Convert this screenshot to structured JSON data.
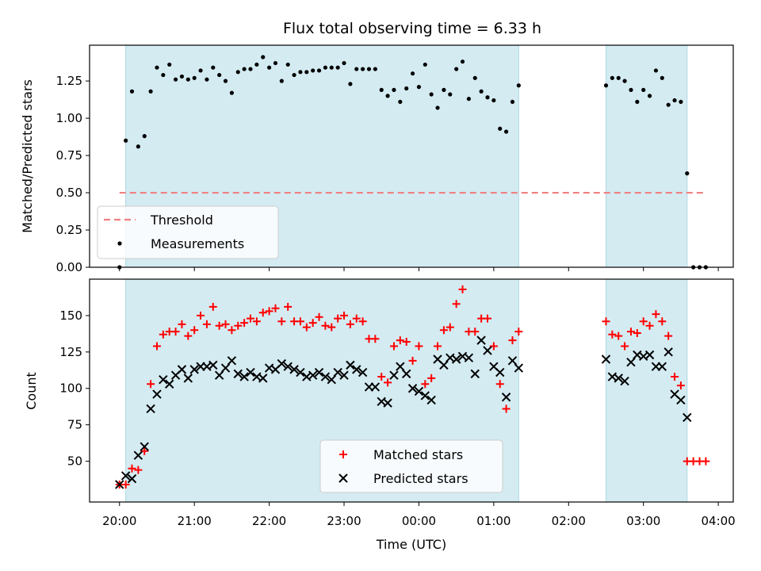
{
  "chart_data": [
    {
      "type": "scatter",
      "title": "Flux total observing time = 6.33 h",
      "xlabel": "",
      "ylabel": "Matched/Predicted stars",
      "ylim": [
        0,
        1.49
      ],
      "yticks": [
        "0.00",
        "0.25",
        "0.50",
        "0.75",
        "1.00",
        "1.25"
      ],
      "shaded_spans": [
        [
          "20:05",
          "01:20"
        ],
        [
          "02:30",
          "03:35"
        ]
      ],
      "shade_color": "#add8e6",
      "threshold": {
        "name": "Threshold",
        "value": 0.5,
        "x_range": [
          "20:00",
          "03:50"
        ],
        "color": "#f08080"
      },
      "series": [
        {
          "name": "Measurements",
          "color": "#000000",
          "x": [
            "20:00",
            "20:05",
            "20:10",
            "20:15",
            "20:20",
            "20:25",
            "20:30",
            "20:35",
            "20:40",
            "20:45",
            "20:50",
            "20:55",
            "21:00",
            "21:05",
            "21:10",
            "21:15",
            "21:20",
            "21:25",
            "21:30",
            "21:35",
            "21:40",
            "21:45",
            "21:50",
            "21:55",
            "22:00",
            "22:05",
            "22:10",
            "22:15",
            "22:20",
            "22:25",
            "22:30",
            "22:35",
            "22:40",
            "22:45",
            "22:50",
            "22:55",
            "23:00",
            "23:05",
            "23:10",
            "23:15",
            "23:20",
            "23:25",
            "23:30",
            "23:35",
            "23:40",
            "23:45",
            "23:50",
            "23:55",
            "00:00",
            "00:05",
            "00:10",
            "00:15",
            "00:20",
            "00:25",
            "00:30",
            "00:35",
            "00:40",
            "00:45",
            "00:50",
            "00:55",
            "01:00",
            "01:05",
            "01:10",
            "01:15",
            "01:20",
            "02:30",
            "02:35",
            "02:40",
            "02:45",
            "02:50",
            "02:55",
            "03:00",
            "03:05",
            "03:10",
            "03:15",
            "03:20",
            "03:25",
            "03:30",
            "03:35",
            "03:40",
            "03:45",
            "03:50"
          ],
          "y": [
            0.0,
            0.85,
            1.18,
            0.81,
            0.88,
            1.18,
            1.34,
            1.29,
            1.36,
            1.26,
            1.28,
            1.26,
            1.27,
            1.32,
            1.26,
            1.34,
            1.29,
            1.25,
            1.17,
            1.31,
            1.33,
            1.33,
            1.36,
            1.41,
            1.34,
            1.37,
            1.25,
            1.36,
            1.29,
            1.31,
            1.31,
            1.32,
            1.32,
            1.34,
            1.34,
            1.34,
            1.37,
            1.23,
            1.33,
            1.33,
            1.33,
            1.33,
            1.19,
            1.15,
            1.19,
            1.11,
            1.2,
            1.3,
            1.21,
            1.36,
            1.16,
            1.07,
            1.19,
            1.16,
            1.33,
            1.38,
            1.13,
            1.27,
            1.18,
            1.14,
            1.12,
            0.93,
            0.91,
            1.11,
            1.22,
            1.22,
            1.27,
            1.27,
            1.25,
            1.19,
            1.11,
            1.19,
            1.15,
            1.32,
            1.27,
            1.09,
            1.12,
            1.11,
            0.63,
            0.0,
            0.0,
            0.0
          ]
        }
      ]
    },
    {
      "type": "scatter",
      "title": "",
      "xlabel": "Time (UTC)",
      "ylabel": "Count",
      "ylim": [
        22,
        175
      ],
      "yticks": [
        "50",
        "75",
        "100",
        "125",
        "150"
      ],
      "xticks": [
        "20:00",
        "21:00",
        "22:00",
        "23:00",
        "00:00",
        "01:00",
        "02:00",
        "03:00",
        "04:00"
      ],
      "shaded_spans": [
        [
          "20:05",
          "01:20"
        ],
        [
          "02:30",
          "03:35"
        ]
      ],
      "shade_color": "#add8e6",
      "series": [
        {
          "name": "Matched stars",
          "marker": "plus",
          "color": "#ff0000",
          "x": [
            "20:00",
            "20:05",
            "20:10",
            "20:15",
            "20:20",
            "20:25",
            "20:30",
            "20:35",
            "20:40",
            "20:45",
            "20:50",
            "20:55",
            "21:00",
            "21:05",
            "21:10",
            "21:15",
            "21:20",
            "21:25",
            "21:30",
            "21:35",
            "21:40",
            "21:45",
            "21:50",
            "21:55",
            "22:00",
            "22:05",
            "22:10",
            "22:15",
            "22:20",
            "22:25",
            "22:30",
            "22:35",
            "22:40",
            "22:45",
            "22:50",
            "22:55",
            "23:00",
            "23:05",
            "23:10",
            "23:15",
            "23:20",
            "23:25",
            "23:30",
            "23:35",
            "23:40",
            "23:45",
            "23:50",
            "23:55",
            "00:00",
            "00:05",
            "00:10",
            "00:15",
            "00:20",
            "00:25",
            "00:30",
            "00:35",
            "00:40",
            "00:45",
            "00:50",
            "00:55",
            "01:00",
            "01:05",
            "01:10",
            "01:15",
            "01:20",
            "02:30",
            "02:35",
            "02:40",
            "02:45",
            "02:50",
            "02:55",
            "03:00",
            "03:05",
            "03:10",
            "03:15",
            "03:20",
            "03:25",
            "03:30",
            "03:35",
            "03:40",
            "03:45",
            "03:50"
          ],
          "y": [
            34,
            34,
            45,
            44,
            57,
            103,
            129,
            137,
            139,
            139,
            144,
            136,
            140,
            150,
            144,
            156,
            143,
            144,
            140,
            143,
            145,
            148,
            146,
            152,
            153,
            155,
            146,
            156,
            146,
            146,
            142,
            145,
            149,
            143,
            142,
            148,
            150,
            144,
            148,
            146,
            134,
            134,
            108,
            104,
            129,
            133,
            132,
            119,
            129,
            103,
            107,
            129,
            140,
            142,
            158,
            168,
            139,
            139,
            148,
            148,
            129,
            103,
            86,
            133,
            139,
            146,
            137,
            136,
            129,
            139,
            138,
            146,
            143,
            151,
            146,
            136,
            108,
            102,
            50,
            50,
            50,
            50
          ]
        },
        {
          "name": "Predicted stars",
          "marker": "x",
          "color": "#000000",
          "x": [
            "20:00",
            "20:05",
            "20:10",
            "20:15",
            "20:20",
            "20:25",
            "20:30",
            "20:35",
            "20:40",
            "20:45",
            "20:50",
            "20:55",
            "21:00",
            "21:05",
            "21:10",
            "21:15",
            "21:20",
            "21:25",
            "21:30",
            "21:35",
            "21:40",
            "21:45",
            "21:50",
            "21:55",
            "22:00",
            "22:05",
            "22:10",
            "22:15",
            "22:20",
            "22:25",
            "22:30",
            "22:35",
            "22:40",
            "22:45",
            "22:50",
            "22:55",
            "23:00",
            "23:05",
            "23:10",
            "23:15",
            "23:20",
            "23:25",
            "23:30",
            "23:35",
            "23:40",
            "23:45",
            "23:50",
            "23:55",
            "00:00",
            "00:05",
            "00:10",
            "00:15",
            "00:20",
            "00:25",
            "00:30",
            "00:35",
            "00:40",
            "00:45",
            "00:50",
            "00:55",
            "01:00",
            "01:05",
            "01:10",
            "01:15",
            "01:20",
            "02:30",
            "02:35",
            "02:40",
            "02:45",
            "02:50",
            "02:55",
            "03:00",
            "03:05",
            "03:10",
            "03:15",
            "03:20",
            "03:25",
            "03:30",
            "03:35"
          ],
          "y": [
            34,
            40,
            38,
            54,
            60,
            86,
            96,
            106,
            103,
            109,
            113,
            107,
            113,
            115,
            115,
            116,
            109,
            114,
            119,
            110,
            108,
            111,
            108,
            107,
            114,
            113,
            117,
            115,
            113,
            111,
            108,
            109,
            111,
            108,
            106,
            111,
            109,
            116,
            113,
            111,
            101,
            101,
            91,
            90,
            109,
            115,
            110,
            100,
            98,
            95,
            92,
            120,
            116,
            121,
            120,
            122,
            121,
            110,
            133,
            126,
            115,
            111,
            94,
            119,
            114,
            120,
            108,
            107,
            105,
            118,
            123,
            122,
            123,
            115,
            115,
            125,
            96,
            92,
            80
          ]
        }
      ]
    }
  ]
}
